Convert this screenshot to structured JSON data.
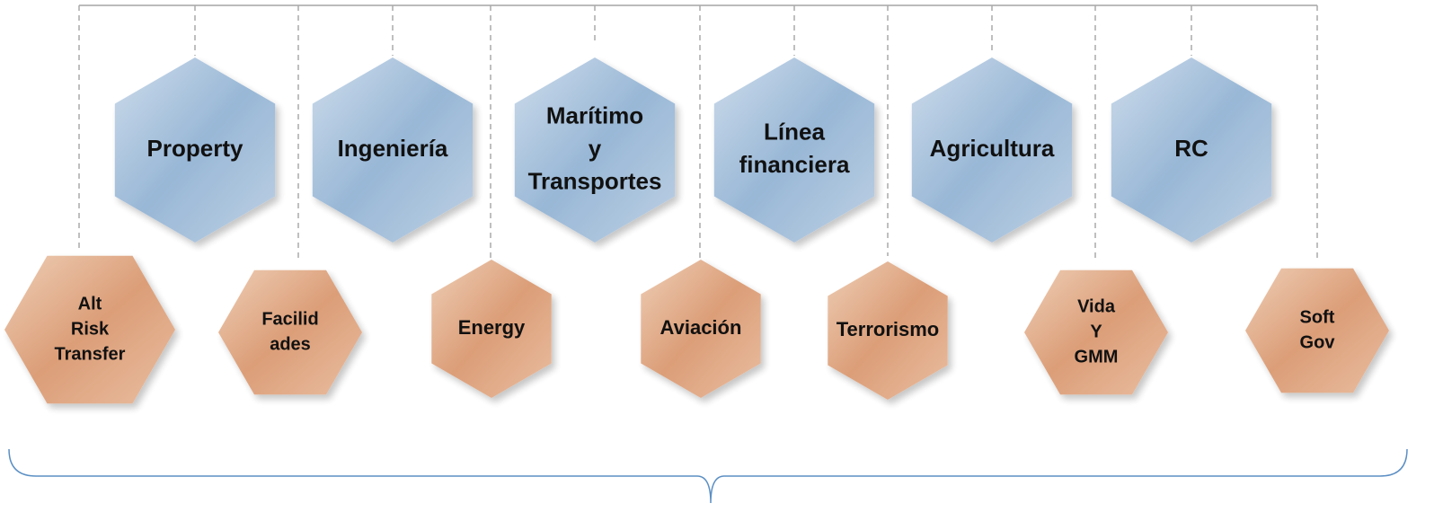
{
  "nodes": [
    {
      "lines": [
        "Property"
      ]
    },
    {
      "lines": [
        "Ingeniería"
      ]
    },
    {
      "lines": [
        "Marítimo",
        "y",
        "Transportes"
      ]
    },
    {
      "lines": [
        "Línea",
        "financiera"
      ]
    },
    {
      "lines": [
        "Agricultura"
      ]
    },
    {
      "lines": [
        "RC"
      ]
    },
    {
      "lines": [
        "Alt",
        "Risk",
        "Transfer"
      ]
    },
    {
      "lines": [
        "Facilid",
        "ades"
      ]
    },
    {
      "lines": [
        "Energy"
      ]
    },
    {
      "lines": [
        "Aviación"
      ]
    },
    {
      "lines": [
        "Terrorismo"
      ]
    },
    {
      "lines": [
        "Vida",
        "Y",
        "GMM"
      ]
    },
    {
      "lines": [
        "Soft",
        "Gov"
      ]
    }
  ]
}
